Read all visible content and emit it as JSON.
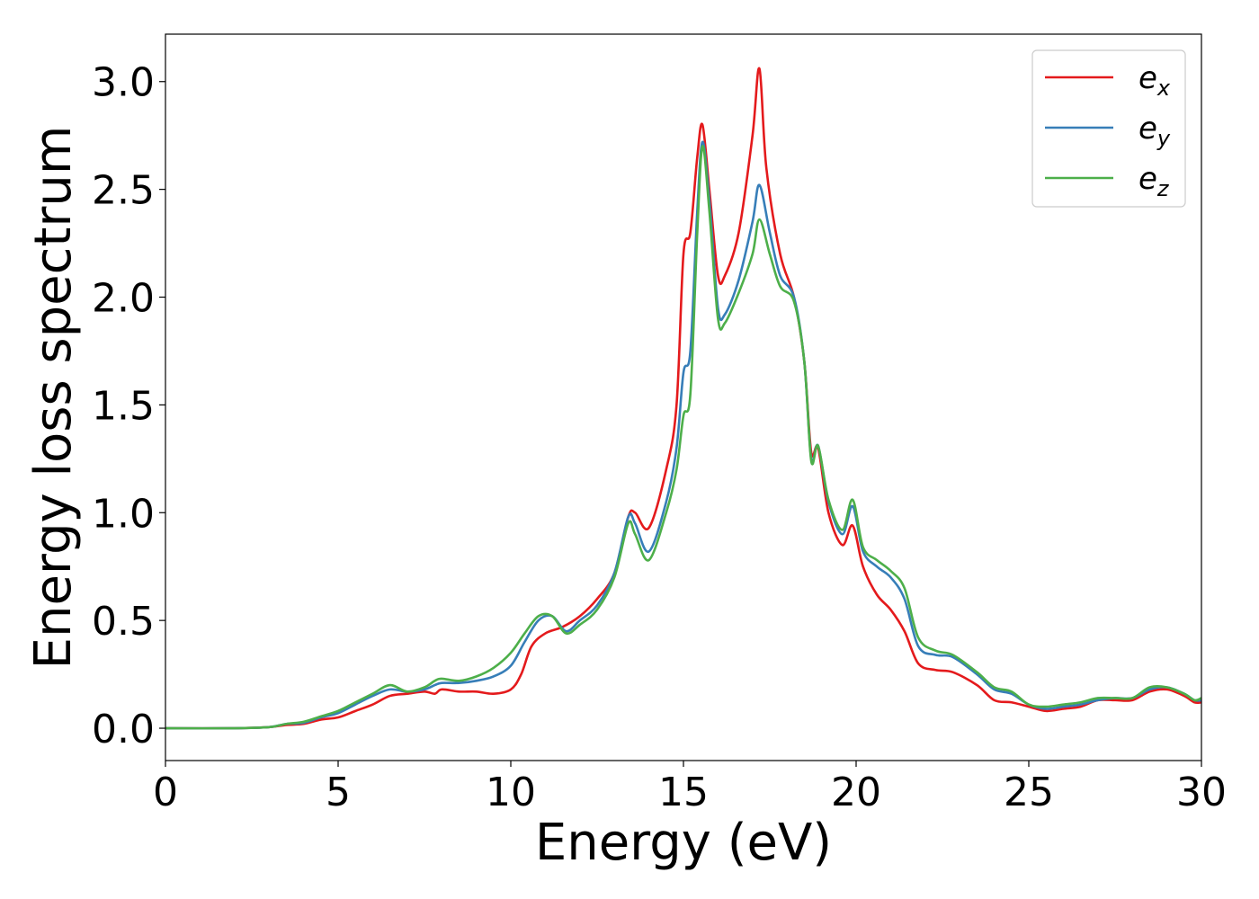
{
  "chart_data": {
    "type": "line",
    "xlabel": "Energy (eV)",
    "ylabel": "Energy loss spectrum",
    "xlim": [
      0,
      30
    ],
    "ylim": [
      -0.15,
      3.22
    ],
    "xticks": [
      0,
      5,
      10,
      15,
      20,
      25,
      30
    ],
    "xtick_labels": [
      "0",
      "5",
      "10",
      "15",
      "20",
      "25",
      "30"
    ],
    "yticks": [
      0.0,
      0.5,
      1.0,
      1.5,
      2.0,
      2.5,
      3.0
    ],
    "ytick_labels": [
      "0.0",
      "0.5",
      "1.0",
      "1.5",
      "2.0",
      "2.5",
      "3.0"
    ],
    "grid": false,
    "legend_position": "top-right",
    "series": [
      {
        "name": "e_x",
        "label_base": "e",
        "label_sub": "x",
        "color": "#e41a1c",
        "points": [
          [
            0,
            0
          ],
          [
            2,
            0
          ],
          [
            3,
            0.005
          ],
          [
            3.5,
            0.015
          ],
          [
            4,
            0.02
          ],
          [
            4.5,
            0.04
          ],
          [
            5,
            0.05
          ],
          [
            5.5,
            0.08
          ],
          [
            6,
            0.11
          ],
          [
            6.5,
            0.15
          ],
          [
            7,
            0.16
          ],
          [
            7.5,
            0.17
          ],
          [
            7.8,
            0.16
          ],
          [
            8,
            0.18
          ],
          [
            8.5,
            0.17
          ],
          [
            9,
            0.17
          ],
          [
            9.5,
            0.16
          ],
          [
            10,
            0.18
          ],
          [
            10.3,
            0.25
          ],
          [
            10.6,
            0.38
          ],
          [
            11,
            0.44
          ],
          [
            11.5,
            0.47
          ],
          [
            12,
            0.52
          ],
          [
            12.5,
            0.6
          ],
          [
            13,
            0.72
          ],
          [
            13.4,
            0.98
          ],
          [
            13.6,
            1.0
          ],
          [
            14,
            0.93
          ],
          [
            14.5,
            1.2
          ],
          [
            14.8,
            1.5
          ],
          [
            15,
            2.2
          ],
          [
            15.2,
            2.3
          ],
          [
            15.4,
            2.65
          ],
          [
            15.55,
            2.8
          ],
          [
            15.75,
            2.5
          ],
          [
            16,
            2.1
          ],
          [
            16.2,
            2.1
          ],
          [
            16.6,
            2.3
          ],
          [
            17,
            2.75
          ],
          [
            17.2,
            3.06
          ],
          [
            17.4,
            2.6
          ],
          [
            17.8,
            2.2
          ],
          [
            18.2,
            2.0
          ],
          [
            18.5,
            1.7
          ],
          [
            18.7,
            1.28
          ],
          [
            18.9,
            1.3
          ],
          [
            19.2,
            1.0
          ],
          [
            19.6,
            0.85
          ],
          [
            19.9,
            0.94
          ],
          [
            20.2,
            0.75
          ],
          [
            20.6,
            0.62
          ],
          [
            21,
            0.55
          ],
          [
            21.4,
            0.45
          ],
          [
            21.8,
            0.3
          ],
          [
            22.3,
            0.27
          ],
          [
            22.8,
            0.26
          ],
          [
            23.5,
            0.2
          ],
          [
            24,
            0.13
          ],
          [
            24.5,
            0.12
          ],
          [
            25,
            0.1
          ],
          [
            25.5,
            0.08
          ],
          [
            26,
            0.09
          ],
          [
            26.5,
            0.1
          ],
          [
            27,
            0.13
          ],
          [
            27.5,
            0.13
          ],
          [
            28,
            0.13
          ],
          [
            28.5,
            0.17
          ],
          [
            29,
            0.18
          ],
          [
            29.5,
            0.15
          ],
          [
            29.8,
            0.12
          ],
          [
            30,
            0.12
          ]
        ]
      },
      {
        "name": "e_y",
        "label_base": "e",
        "label_sub": "y",
        "color": "#377eb8",
        "points": [
          [
            0,
            0
          ],
          [
            2,
            0
          ],
          [
            3,
            0.005
          ],
          [
            3.5,
            0.02
          ],
          [
            4,
            0.025
          ],
          [
            4.5,
            0.05
          ],
          [
            5,
            0.07
          ],
          [
            5.5,
            0.11
          ],
          [
            6,
            0.15
          ],
          [
            6.5,
            0.18
          ],
          [
            7,
            0.17
          ],
          [
            7.5,
            0.18
          ],
          [
            7.8,
            0.2
          ],
          [
            8,
            0.21
          ],
          [
            8.5,
            0.21
          ],
          [
            9,
            0.22
          ],
          [
            9.5,
            0.24
          ],
          [
            10,
            0.29
          ],
          [
            10.4,
            0.4
          ],
          [
            10.8,
            0.5
          ],
          [
            11.2,
            0.52
          ],
          [
            11.6,
            0.45
          ],
          [
            12,
            0.5
          ],
          [
            12.5,
            0.57
          ],
          [
            13,
            0.72
          ],
          [
            13.4,
            0.98
          ],
          [
            13.6,
            0.95
          ],
          [
            14,
            0.82
          ],
          [
            14.5,
            1.05
          ],
          [
            14.8,
            1.3
          ],
          [
            15,
            1.65
          ],
          [
            15.2,
            1.75
          ],
          [
            15.4,
            2.4
          ],
          [
            15.55,
            2.72
          ],
          [
            15.75,
            2.45
          ],
          [
            16,
            1.95
          ],
          [
            16.2,
            1.92
          ],
          [
            16.6,
            2.08
          ],
          [
            17,
            2.35
          ],
          [
            17.2,
            2.52
          ],
          [
            17.5,
            2.3
          ],
          [
            17.8,
            2.1
          ],
          [
            18.2,
            2.0
          ],
          [
            18.5,
            1.7
          ],
          [
            18.7,
            1.25
          ],
          [
            18.9,
            1.31
          ],
          [
            19.2,
            1.05
          ],
          [
            19.6,
            0.9
          ],
          [
            19.9,
            1.03
          ],
          [
            20.2,
            0.82
          ],
          [
            20.6,
            0.75
          ],
          [
            21,
            0.7
          ],
          [
            21.4,
            0.6
          ],
          [
            21.8,
            0.38
          ],
          [
            22.3,
            0.34
          ],
          [
            22.8,
            0.33
          ],
          [
            23.5,
            0.25
          ],
          [
            24,
            0.18
          ],
          [
            24.5,
            0.16
          ],
          [
            25,
            0.11
          ],
          [
            25.5,
            0.09
          ],
          [
            26,
            0.1
          ],
          [
            26.5,
            0.11
          ],
          [
            27,
            0.13
          ],
          [
            27.5,
            0.14
          ],
          [
            28,
            0.14
          ],
          [
            28.5,
            0.18
          ],
          [
            29,
            0.19
          ],
          [
            29.5,
            0.16
          ],
          [
            29.8,
            0.13
          ],
          [
            30,
            0.13
          ]
        ]
      },
      {
        "name": "e_z",
        "label_base": "e",
        "label_sub": "z",
        "color": "#4daf4a",
        "points": [
          [
            0,
            0
          ],
          [
            2,
            0
          ],
          [
            3,
            0.005
          ],
          [
            3.5,
            0.02
          ],
          [
            4,
            0.03
          ],
          [
            4.5,
            0.055
          ],
          [
            5,
            0.08
          ],
          [
            5.5,
            0.12
          ],
          [
            6,
            0.16
          ],
          [
            6.5,
            0.2
          ],
          [
            7,
            0.17
          ],
          [
            7.5,
            0.19
          ],
          [
            7.8,
            0.22
          ],
          [
            8,
            0.23
          ],
          [
            8.5,
            0.22
          ],
          [
            9,
            0.24
          ],
          [
            9.5,
            0.28
          ],
          [
            10,
            0.35
          ],
          [
            10.4,
            0.44
          ],
          [
            10.8,
            0.52
          ],
          [
            11.2,
            0.52
          ],
          [
            11.6,
            0.44
          ],
          [
            12,
            0.48
          ],
          [
            12.5,
            0.55
          ],
          [
            13,
            0.7
          ],
          [
            13.4,
            0.95
          ],
          [
            13.6,
            0.9
          ],
          [
            14,
            0.78
          ],
          [
            14.5,
            1.0
          ],
          [
            14.8,
            1.2
          ],
          [
            15,
            1.45
          ],
          [
            15.2,
            1.55
          ],
          [
            15.4,
            2.3
          ],
          [
            15.55,
            2.7
          ],
          [
            15.75,
            2.4
          ],
          [
            16,
            1.9
          ],
          [
            16.2,
            1.88
          ],
          [
            16.6,
            2.02
          ],
          [
            17,
            2.2
          ],
          [
            17.2,
            2.36
          ],
          [
            17.5,
            2.2
          ],
          [
            17.8,
            2.05
          ],
          [
            18.2,
            1.98
          ],
          [
            18.5,
            1.7
          ],
          [
            18.7,
            1.24
          ],
          [
            18.9,
            1.31
          ],
          [
            19.2,
            1.06
          ],
          [
            19.6,
            0.92
          ],
          [
            19.9,
            1.06
          ],
          [
            20.2,
            0.84
          ],
          [
            20.6,
            0.78
          ],
          [
            21,
            0.73
          ],
          [
            21.4,
            0.65
          ],
          [
            21.8,
            0.42
          ],
          [
            22.3,
            0.36
          ],
          [
            22.8,
            0.34
          ],
          [
            23.5,
            0.26
          ],
          [
            24,
            0.19
          ],
          [
            24.5,
            0.17
          ],
          [
            25,
            0.11
          ],
          [
            25.5,
            0.1
          ],
          [
            26,
            0.11
          ],
          [
            26.5,
            0.12
          ],
          [
            27,
            0.14
          ],
          [
            27.5,
            0.14
          ],
          [
            28,
            0.14
          ],
          [
            28.5,
            0.19
          ],
          [
            29,
            0.19
          ],
          [
            29.5,
            0.16
          ],
          [
            29.8,
            0.13
          ],
          [
            30,
            0.14
          ]
        ]
      }
    ]
  }
}
